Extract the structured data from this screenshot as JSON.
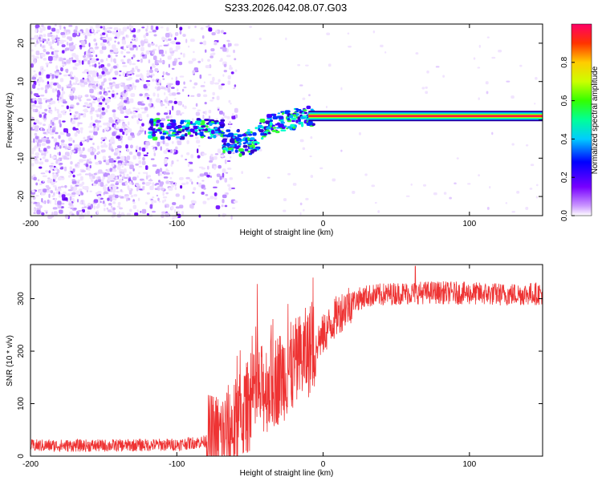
{
  "title": "S233.2026.042.08.07.G03",
  "chart_data": [
    {
      "type": "heatmap",
      "xlabel": "Height of straight line (km)",
      "ylabel": "Frequency (Hz)",
      "xlim": [
        -200,
        150
      ],
      "ylim": [
        -25,
        25
      ],
      "xticks": [
        -200,
        -100,
        0,
        100
      ],
      "yticks": [
        20,
        10,
        0,
        -10,
        -20
      ],
      "colorbar": {
        "label": "Normalized spectral amplitude",
        "range": [
          0,
          1
        ],
        "ticks": [
          0.0,
          0.2,
          0.4,
          0.6,
          0.8
        ]
      },
      "features": {
        "noise_region_km": [
          -200,
          -70
        ],
        "tone_start_km": -10,
        "tone_frequency_hz": 1,
        "tone_amplitude": 0.95
      }
    },
    {
      "type": "line",
      "xlabel": "Height of straight line (km)",
      "ylabel": "SNR (10 * v/v)",
      "xlim": [
        -200,
        150
      ],
      "ylim": [
        0,
        365
      ],
      "xticks": [
        -200,
        -100,
        0,
        100
      ],
      "yticks": [
        0,
        100,
        200,
        300
      ],
      "series": [
        {
          "name": "SNR",
          "color": "#ee3333",
          "x": [
            -200,
            -150,
            -100,
            -80,
            -70,
            -60,
            -50,
            -40,
            -30,
            -20,
            -10,
            0,
            10,
            20,
            30,
            50,
            75,
            100,
            125,
            150
          ],
          "values": [
            20,
            20,
            22,
            28,
            35,
            60,
            100,
            130,
            150,
            170,
            200,
            230,
            270,
            295,
            305,
            310,
            312,
            310,
            308,
            310
          ]
        }
      ],
      "spikes": [
        {
          "x": -45,
          "y": 328
        },
        {
          "x": -24,
          "y": 290
        },
        {
          "x": 63,
          "y": 362
        }
      ]
    }
  ]
}
